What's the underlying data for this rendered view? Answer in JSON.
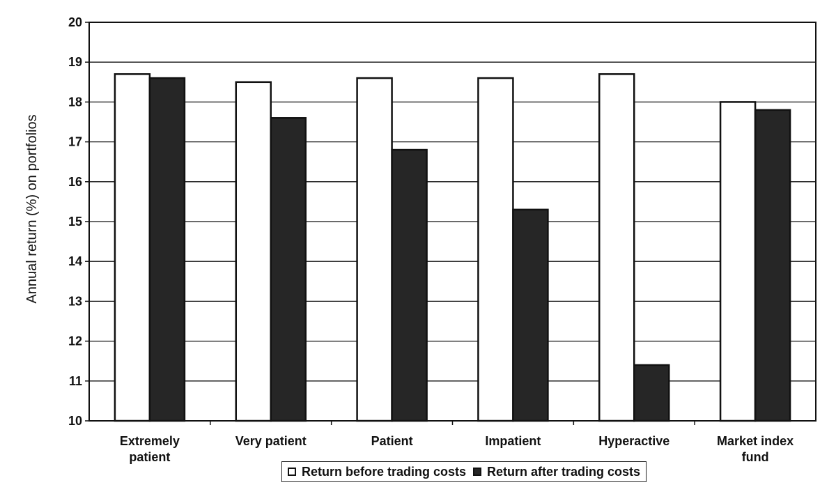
{
  "chart_data": {
    "type": "bar",
    "title": "",
    "xlabel": "",
    "ylabel": "Annual return (%) on portfolios",
    "ylim": [
      10,
      20
    ],
    "yticks": [
      10,
      11,
      12,
      13,
      14,
      15,
      16,
      17,
      18,
      19,
      20
    ],
    "grid": "horizontal",
    "legend_position": "bottom",
    "categories": [
      [
        "Extremely",
        "patient"
      ],
      [
        "Very patient"
      ],
      [
        "Patient"
      ],
      [
        "Impatient"
      ],
      [
        "Hyperactive"
      ],
      [
        "Market index",
        "fund"
      ]
    ],
    "series": [
      {
        "name": "Return before trading costs",
        "color": "#ffffff",
        "values": [
          18.7,
          18.5,
          18.6,
          18.6,
          18.7,
          18.0
        ]
      },
      {
        "name": "Return after trading costs",
        "color": "#262626",
        "values": [
          18.6,
          17.6,
          16.8,
          15.3,
          11.4,
          17.8
        ]
      }
    ]
  }
}
